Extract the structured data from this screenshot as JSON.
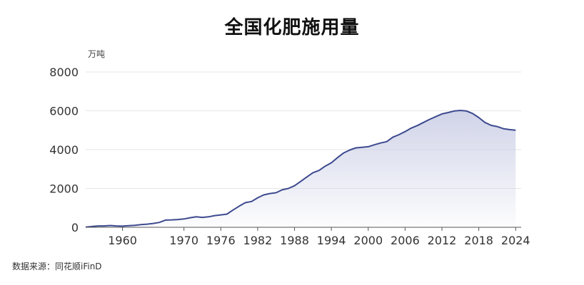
{
  "chart_data": {
    "type": "area",
    "title": "全国化肥施用量",
    "ylabel": "万吨",
    "xlabel": "",
    "ylim": [
      0,
      8000
    ],
    "yticks": [
      0,
      2000,
      4000,
      6000,
      8000
    ],
    "xticks": [
      1960,
      1970,
      1976,
      1982,
      1988,
      1994,
      2000,
      2006,
      2012,
      2018,
      2024
    ],
    "grid": true,
    "colors": {
      "line": "#3d4a8f",
      "fill_top": "#c8cce4",
      "grid": "#e6e6e6",
      "axis": "#555555"
    },
    "x": [
      1954,
      1955,
      1956,
      1957,
      1958,
      1959,
      1960,
      1961,
      1962,
      1963,
      1964,
      1965,
      1966,
      1967,
      1968,
      1969,
      1970,
      1971,
      1972,
      1973,
      1974,
      1975,
      1976,
      1977,
      1978,
      1979,
      1980,
      1981,
      1982,
      1983,
      1984,
      1985,
      1986,
      1987,
      1988,
      1989,
      1990,
      1991,
      1992,
      1993,
      1994,
      1995,
      1996,
      1997,
      1998,
      1999,
      2000,
      2001,
      2002,
      2003,
      2004,
      2005,
      2006,
      2007,
      2008,
      2009,
      2010,
      2011,
      2012,
      2013,
      2014,
      2015,
      2016,
      2017,
      2018,
      2019,
      2020,
      2021,
      2022,
      2023,
      2024
    ],
    "values": [
      10,
      40,
      70,
      70,
      90,
      70,
      60,
      80,
      100,
      140,
      160,
      200,
      250,
      370,
      380,
      400,
      430,
      490,
      540,
      510,
      540,
      600,
      640,
      680,
      890,
      1090,
      1270,
      1330,
      1520,
      1670,
      1740,
      1780,
      1930,
      2000,
      2140,
      2360,
      2590,
      2810,
      2930,
      3150,
      3320,
      3590,
      3830,
      3980,
      4090,
      4120,
      4150,
      4250,
      4340,
      4410,
      4640,
      4770,
      4930,
      5110,
      5240,
      5400,
      5560,
      5700,
      5840,
      5910,
      5990,
      6020,
      5990,
      5860,
      5650,
      5400,
      5250,
      5190,
      5080,
      5030,
      5000
    ]
  },
  "footer": {
    "source": "数据来源：同花顺iFinD"
  }
}
